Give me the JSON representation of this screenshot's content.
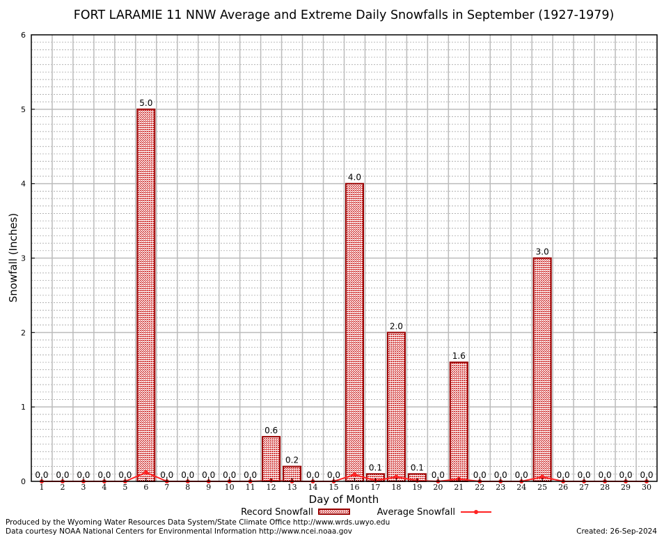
{
  "chart_data": {
    "type": "bar",
    "title": "FORT LARAMIE 11 NNW Average and Extreme Daily Snowfalls in September (1927-1979)",
    "xlabel": "Day of Month",
    "ylabel": "Snowfall (Inches)",
    "ylim": [
      0,
      6
    ],
    "yticks": [
      "0",
      "1",
      "2",
      "3",
      "4",
      "5",
      "6"
    ],
    "categories": [
      "1",
      "2",
      "3",
      "4",
      "5",
      "6",
      "7",
      "8",
      "9",
      "10",
      "11",
      "12",
      "13",
      "14",
      "15",
      "16",
      "17",
      "18",
      "19",
      "20",
      "21",
      "22",
      "23",
      "24",
      "25",
      "26",
      "27",
      "28",
      "29",
      "30"
    ],
    "grid": true,
    "legend_position": "bottom-center",
    "series": [
      {
        "name": "Record Snowfall",
        "type": "bar",
        "color": "#990000",
        "values": [
          0,
          0,
          0,
          0,
          0,
          5.0,
          0,
          0,
          0,
          0,
          0,
          0.6,
          0.2,
          0,
          0,
          4.0,
          0.1,
          2.0,
          0.1,
          0,
          1.6,
          0,
          0,
          0,
          3.0,
          0,
          0,
          0,
          0,
          0
        ],
        "labels": [
          "0.0",
          "0.0",
          "0.0",
          "0.0",
          "0.0",
          "5.0",
          "0.0",
          "0.0",
          "0.0",
          "0.0",
          "0.0",
          "0.6",
          "0.2",
          "0.0",
          "0.0",
          "4.0",
          "0.1",
          "2.0",
          "0.1",
          "0.0",
          "1.6",
          "0.0",
          "0.0",
          "0.0",
          "3.0",
          "0.0",
          "0.0",
          "0.0",
          "0.0",
          "0.0"
        ]
      },
      {
        "name": "Average Snowfall",
        "type": "line",
        "color": "#ff2222",
        "values": [
          0,
          0,
          0,
          0,
          0,
          0.12,
          0,
          0,
          0,
          0,
          0,
          0.01,
          0,
          0,
          0,
          0.09,
          0.01,
          0.06,
          0.01,
          0,
          0.03,
          0,
          0,
          0,
          0.06,
          0,
          0,
          0,
          0,
          0
        ]
      }
    ]
  },
  "footer": {
    "line1": "Produced by the Wyoming Water Resources Data System/State Climate Office http://www.wrds.uwyo.edu",
    "line2": "Data courtesy NOAA National Centers for Environmental Information http://www.ncei.noaa.gov",
    "created": "Created: 26-Sep-2024"
  }
}
